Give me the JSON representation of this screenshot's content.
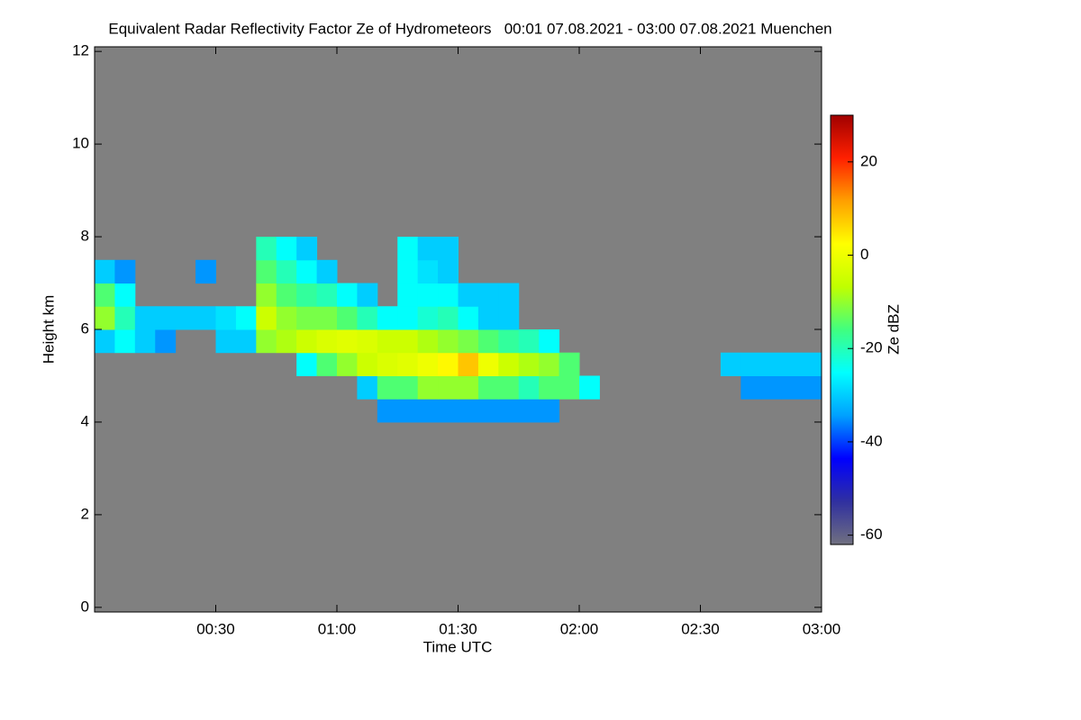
{
  "chart_data": {
    "type": "heatmap",
    "title": "Equivalent Radar Reflectivity Factor Ze of Hydrometeors   00:01 07.08.2021 - 03:00 07.08.2021 Muenchen",
    "x_label": "Time UTC",
    "y_label": "Height km",
    "colorbar_label": "Ze dBZ",
    "background": "#808080",
    "xlim": [
      0,
      180
    ],
    "xticks": [
      {
        "value": 30,
        "label": "00:30"
      },
      {
        "value": 60,
        "label": "01:00"
      },
      {
        "value": 90,
        "label": "01:30"
      },
      {
        "value": 120,
        "label": "02:00"
      },
      {
        "value": 150,
        "label": "02:30"
      },
      {
        "value": 180,
        "label": "03:00"
      }
    ],
    "ylim": [
      -0.1,
      12.1
    ],
    "yticks": [
      0,
      2,
      4,
      6,
      8,
      10,
      12
    ],
    "clim": [
      -62,
      30
    ],
    "cticks": [
      -60,
      -40,
      -20,
      0,
      20
    ],
    "colormap": [
      "#707080",
      "#3030a0",
      "#0000ff",
      "#00a0ff",
      "#00ffff",
      "#40ff80",
      "#c0ff00",
      "#ffff00",
      "#ffa000",
      "#ff2000",
      "#a00000"
    ],
    "x": [
      2.5,
      7.5,
      12.5,
      17.5,
      22.5,
      27.5,
      32.5,
      37.5,
      42.5,
      47.5,
      52.5,
      57.5,
      62.5,
      67.5,
      72.5,
      77.5,
      82.5,
      87.5,
      92.5,
      97.5,
      102.5,
      107.5,
      112.5,
      117.5,
      122.5,
      127.5,
      132.5,
      137.5,
      142.5,
      147.5,
      152.5,
      157.5,
      162.5,
      167.5,
      172.5,
      177.5
    ],
    "y": [
      4.25,
      4.75,
      5.25,
      5.75,
      6.25,
      6.75,
      7.25,
      7.75
    ],
    "values": [
      [
        null,
        null,
        null,
        null,
        null,
        null,
        null,
        null,
        null,
        null,
        null,
        null,
        null,
        null,
        -35,
        -35,
        -35,
        -35,
        -35,
        -35,
        -35,
        -35,
        -35,
        null,
        null,
        null,
        null,
        null,
        null,
        null,
        null,
        null,
        null,
        null,
        null,
        null
      ],
      [
        null,
        null,
        null,
        null,
        null,
        null,
        null,
        null,
        null,
        null,
        null,
        null,
        null,
        -30,
        -15,
        -15,
        -10,
        -10,
        -10,
        -15,
        -15,
        -20,
        -15,
        -15,
        -25,
        null,
        null,
        null,
        null,
        null,
        null,
        null,
        -35,
        -35,
        -35,
        -35
      ],
      [
        null,
        null,
        null,
        null,
        null,
        null,
        null,
        null,
        null,
        null,
        -25,
        -15,
        -10,
        -5,
        -3,
        -2,
        0,
        3,
        8,
        0,
        -5,
        -8,
        -10,
        -15,
        null,
        null,
        null,
        null,
        null,
        null,
        null,
        -30,
        -30,
        -30,
        -30,
        -30
      ],
      [
        -30,
        -25,
        -30,
        -35,
        null,
        null,
        -30,
        -30,
        -10,
        -8,
        -5,
        -3,
        -2,
        -3,
        -5,
        -5,
        -8,
        -10,
        -12,
        -15,
        -18,
        -20,
        -25,
        null,
        null,
        null,
        null,
        null,
        null,
        null,
        null,
        null,
        null,
        null,
        null,
        null
      ],
      [
        -10,
        -20,
        -30,
        -30,
        -30,
        -30,
        -28,
        -25,
        -5,
        -10,
        -12,
        -12,
        -15,
        -20,
        -25,
        -25,
        -22,
        -20,
        -25,
        -30,
        -30,
        null,
        null,
        null,
        null,
        null,
        null,
        null,
        null,
        null,
        null,
        null,
        null,
        null,
        null,
        null
      ],
      [
        -15,
        -25,
        null,
        null,
        null,
        null,
        null,
        null,
        -10,
        -15,
        -18,
        -20,
        -25,
        -30,
        null,
        -25,
        -25,
        -25,
        -30,
        -30,
        -30,
        null,
        null,
        null,
        null,
        null,
        null,
        null,
        null,
        null,
        null,
        null,
        null,
        null,
        null,
        null
      ],
      [
        -30,
        -35,
        null,
        null,
        null,
        -35,
        null,
        null,
        -15,
        -20,
        -25,
        -30,
        null,
        null,
        null,
        -25,
        -28,
        -30,
        null,
        null,
        null,
        null,
        null,
        null,
        null,
        null,
        null,
        null,
        null,
        null,
        null,
        null,
        null,
        null,
        null,
        null
      ],
      [
        null,
        null,
        null,
        null,
        null,
        null,
        null,
        null,
        -20,
        -25,
        -30,
        null,
        null,
        null,
        null,
        -25,
        -30,
        -30,
        null,
        null,
        null,
        null,
        null,
        null,
        null,
        null,
        null,
        null,
        null,
        null,
        null,
        null,
        null,
        null,
        null,
        null
      ]
    ]
  }
}
